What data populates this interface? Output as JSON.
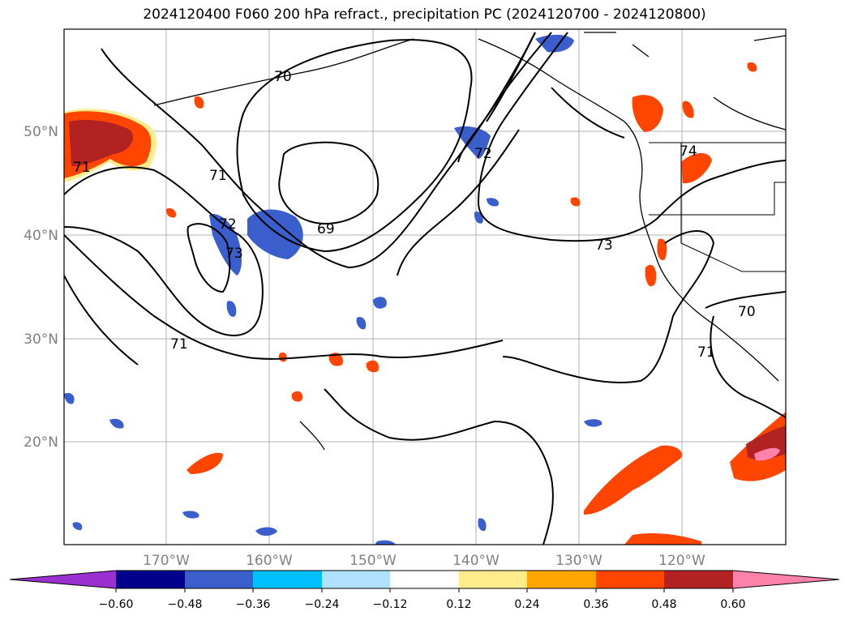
{
  "title": "2024120400 F060 200 hPa refract., precipitation PC (2024120700 - 2024120800)",
  "map": {
    "lat_labels": [
      "50°N",
      "40°N",
      "30°N",
      "20°N"
    ],
    "lon_labels": [
      "170°W",
      "160°W",
      "150°W",
      "140°W",
      "130°W",
      "120°W"
    ],
    "contour_labels": [
      "69",
      "70",
      "71",
      "71",
      "71",
      "71",
      "72",
      "72",
      "73",
      "73",
      "74",
      "70"
    ],
    "colors": {
      "neg_060": "#9b30d0",
      "neg_048": "#00008b",
      "neg_036": "#3a5fcd",
      "neg_024": "#00bfff",
      "neg_012": "#b0e2ff",
      "zero": "#ffffff",
      "pos_012": "#ffec8b",
      "pos_024": "#ffa500",
      "pos_036": "#ff4500",
      "pos_048": "#b22222",
      "pos_060": "#ff82ab"
    }
  },
  "colorbar": {
    "ticks": [
      "−0.60",
      "−0.48",
      "−0.36",
      "−0.24",
      "−0.12",
      "0.12",
      "0.24",
      "0.36",
      "0.48",
      "0.60"
    ]
  }
}
